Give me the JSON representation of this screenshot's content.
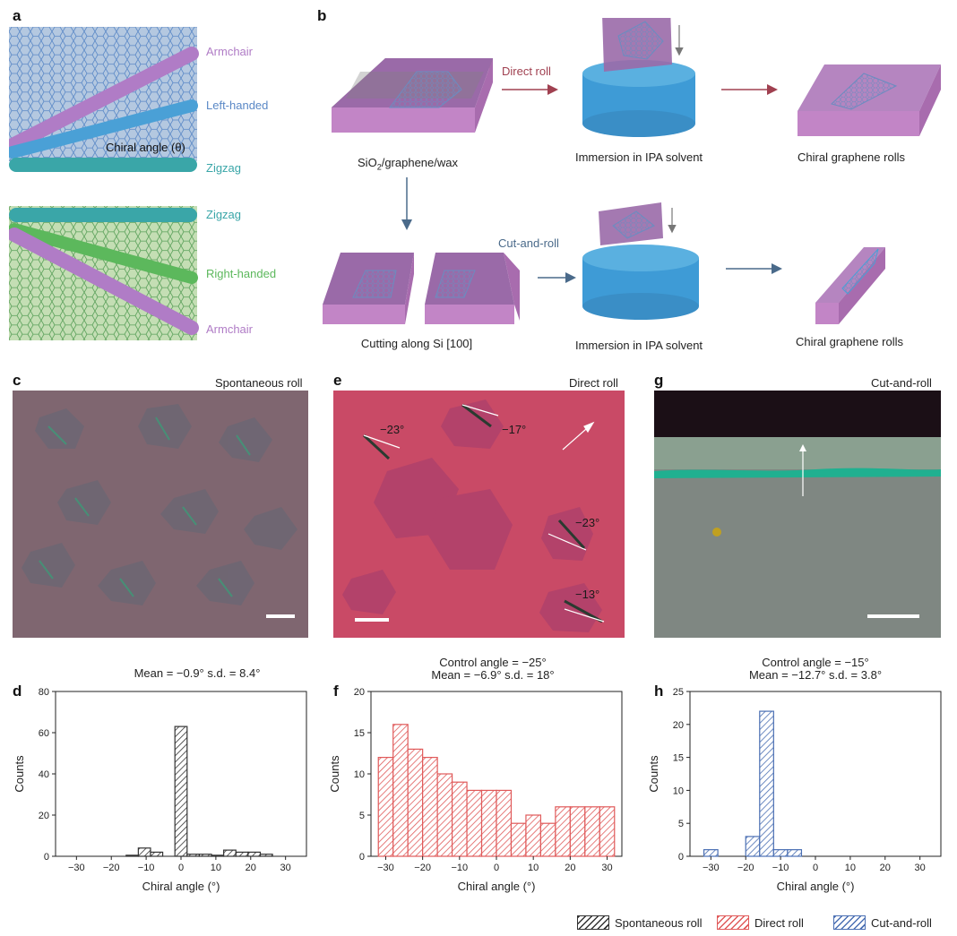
{
  "panel_a": {
    "letter": "a",
    "top": {
      "armchair": "Armchair",
      "left_handed": "Left-handed",
      "chiral_angle": "Chiral angle (θ)",
      "zigzag": "Zigzag"
    },
    "bottom": {
      "zigzag": "Zigzag",
      "right_handed": "Right-handed",
      "armchair": "Armchair"
    }
  },
  "panel_b": {
    "letter": "b",
    "direct_roll": "Direct roll",
    "cut_and_roll": "Cut-and-roll",
    "sio2_main": "SiO",
    "sio2_sub": "2",
    "sio2_rest": "/graphene/wax",
    "immersion_top": "Immersion in IPA solvent",
    "rolls_top": "Chiral graphene rolls",
    "cutting": "Cutting along Si [100]",
    "immersion_bottom": "Immersion in IPA solvent",
    "rolls_bottom": "Chiral graphene rolls"
  },
  "micrographs": [
    {
      "letter": "c",
      "title": "Spontaneous roll"
    },
    {
      "letter": "e",
      "title": "Direct roll",
      "angles": [
        "−23°",
        "−17°",
        "−23°",
        "−13°"
      ]
    },
    {
      "letter": "g",
      "title": "Cut-and-roll"
    }
  ],
  "hist_titles": {
    "d": {
      "letter": "d",
      "line1": "Mean = −0.9° s.d. = 8.4°"
    },
    "f": {
      "letter": "f",
      "line1": "Control angle = −25°",
      "line2": "Mean = −6.9° s.d. = 18°"
    },
    "h": {
      "letter": "h",
      "line1": "Control angle = −15°",
      "line2": "Mean = −12.7° s.d. = 3.8°"
    }
  },
  "legend": [
    {
      "label": "Spontaneous roll",
      "color": "#333333"
    },
    {
      "label": "Direct roll",
      "color": "#e05a5a"
    },
    {
      "label": "Cut-and-roll",
      "color": "#4a6fb3"
    }
  ],
  "chart_data": [
    {
      "type": "bar",
      "panel": "d",
      "title": "Mean = −0.9° s.d. = 8.4°",
      "xlabel": "Chiral angle (°)",
      "ylabel": "Counts",
      "xlim": [
        -36,
        36
      ],
      "ylim": [
        0,
        80
      ],
      "xticks": [
        -30,
        -20,
        -10,
        0,
        10,
        20,
        30
      ],
      "yticks": [
        0,
        20,
        40,
        60,
        80
      ],
      "bin_width": 3.5,
      "bars": [
        {
          "x": -14,
          "y": 0.5
        },
        {
          "x": -10.5,
          "y": 4
        },
        {
          "x": -7,
          "y": 2
        },
        {
          "x": 0,
          "y": 63
        },
        {
          "x": 3.5,
          "y": 1
        },
        {
          "x": 7,
          "y": 1
        },
        {
          "x": 10.5,
          "y": 0.5
        },
        {
          "x": 14,
          "y": 3
        },
        {
          "x": 17.5,
          "y": 2
        },
        {
          "x": 21,
          "y": 2
        },
        {
          "x": 24.5,
          "y": 1
        }
      ],
      "series_name": "Spontaneous roll",
      "color": "#333333"
    },
    {
      "type": "bar",
      "panel": "f",
      "title": "Control angle = −25° / Mean = −6.9° s.d. = 18°",
      "xlabel": "Chiral angle (°)",
      "ylabel": "Counts",
      "xlim": [
        -34,
        34
      ],
      "ylim": [
        0,
        20
      ],
      "xticks": [
        -30,
        -20,
        -10,
        0,
        10,
        20,
        30
      ],
      "yticks": [
        0,
        5,
        10,
        15,
        20
      ],
      "bin_width": 4,
      "bars": [
        {
          "x": -30,
          "y": 12
        },
        {
          "x": -26,
          "y": 16
        },
        {
          "x": -22,
          "y": 13
        },
        {
          "x": -18,
          "y": 12
        },
        {
          "x": -14,
          "y": 10
        },
        {
          "x": -10,
          "y": 9
        },
        {
          "x": -6,
          "y": 8
        },
        {
          "x": -2,
          "y": 8
        },
        {
          "x": 2,
          "y": 8
        },
        {
          "x": 6,
          "y": 4
        },
        {
          "x": 10,
          "y": 5
        },
        {
          "x": 14,
          "y": 4
        },
        {
          "x": 18,
          "y": 6
        },
        {
          "x": 22,
          "y": 6
        },
        {
          "x": 26,
          "y": 6
        },
        {
          "x": 30,
          "y": 6
        }
      ],
      "series_name": "Direct roll",
      "color": "#e05a5a"
    },
    {
      "type": "bar",
      "panel": "h",
      "title": "Control angle = −15° / Mean = −12.7° s.d. = 3.8°",
      "xlabel": "Chiral angle (°)",
      "ylabel": "Counts",
      "xlim": [
        -36,
        36
      ],
      "ylim": [
        0,
        25
      ],
      "xticks": [
        -30,
        -20,
        -10,
        0,
        10,
        20,
        30
      ],
      "yticks": [
        0,
        5,
        10,
        15,
        20,
        25
      ],
      "bin_width": 4,
      "bars": [
        {
          "x": -30,
          "y": 1
        },
        {
          "x": -18,
          "y": 3
        },
        {
          "x": -14,
          "y": 22
        },
        {
          "x": -10,
          "y": 1
        },
        {
          "x": -6,
          "y": 1
        }
      ],
      "series_name": "Cut-and-roll",
      "color": "#4a6fb3"
    }
  ]
}
